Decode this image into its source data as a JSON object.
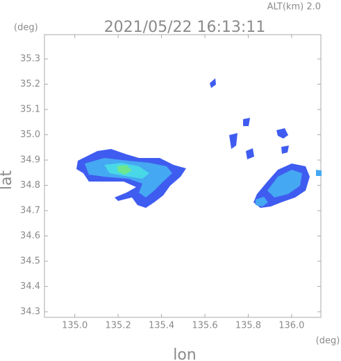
{
  "chart_data": {
    "type": "map",
    "title": "2021/05/22 16:13:11",
    "subtitle": "ALT(km) 2.0",
    "x_label": "lon",
    "y_label": "lat",
    "x_unit": "(deg)",
    "y_unit": "(deg)",
    "xlim": [
      134.86,
      136.135
    ],
    "ylim": [
      34.278,
      35.396
    ],
    "xticks": [
      {
        "value": 135.0,
        "label": "135.0"
      },
      135.2,
      135.4,
      135.6,
      135.8,
      {
        "value": 136.0,
        "label": "136.0"
      }
    ],
    "yticks": [
      34.3,
      34.4,
      34.5,
      34.6,
      34.7,
      34.8,
      34.9,
      {
        "value": 35.0,
        "label": "35.0"
      },
      35.1,
      35.2,
      35.3
    ]
  }
}
